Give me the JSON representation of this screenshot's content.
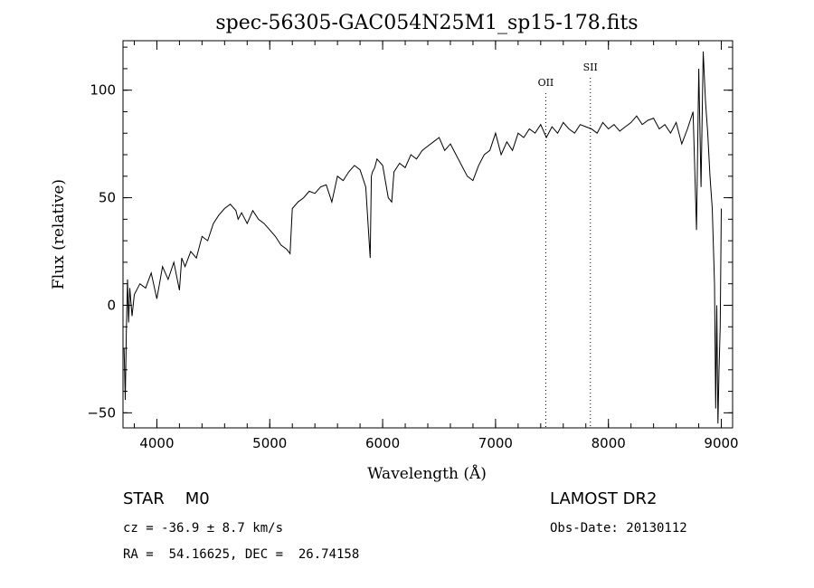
{
  "chart_data": {
    "type": "line",
    "title": "spec-56305-GAC054N25M1_sp15-178.fits",
    "xlabel": "Wavelength (Å)",
    "ylabel": "Flux (relative)",
    "xlim": [
      3700,
      9100
    ],
    "ylim": [
      -57,
      123
    ],
    "xticks": [
      4000,
      5000,
      6000,
      7000,
      8000,
      9000
    ],
    "yticks": [
      -50,
      0,
      50,
      100
    ],
    "x_minor_step": 200,
    "y_minor_step": 10,
    "grid": false,
    "legend": "none",
    "line_color": "#000000",
    "series": [
      {
        "x": [
          3710,
          3720,
          3730,
          3740,
          3750,
          3760,
          3780,
          3800,
          3850,
          3900,
          3950,
          4000,
          4050,
          4100,
          4150,
          4200,
          4220,
          4250,
          4300,
          4350,
          4400,
          4450,
          4500,
          4550,
          4600,
          4650,
          4700,
          4720,
          4750,
          4800,
          4850,
          4900,
          4950,
          5000,
          5050,
          5100,
          5150,
          5180,
          5200,
          5250,
          5300,
          5350,
          5400,
          5450,
          5500,
          5550,
          5600,
          5650,
          5700,
          5750,
          5800,
          5850,
          5880,
          5890,
          5900,
          5910,
          5930,
          5950,
          6000,
          6050,
          6080,
          6100,
          6150,
          6200,
          6250,
          6300,
          6350,
          6400,
          6450,
          6500,
          6550,
          6600,
          6650,
          6700,
          6750,
          6800,
          6850,
          6900,
          6950,
          7000,
          7050,
          7100,
          7150,
          7200,
          7250,
          7300,
          7350,
          7400,
          7450,
          7500,
          7550,
          7600,
          7650,
          7700,
          7750,
          7800,
          7850,
          7900,
          7950,
          8000,
          8050,
          8100,
          8150,
          8200,
          8250,
          8300,
          8350,
          8400,
          8450,
          8500,
          8550,
          8600,
          8650,
          8700,
          8750,
          8780,
          8800,
          8820,
          8840,
          8860,
          8880,
          8900,
          8920,
          8940,
          8950,
          8960,
          8970,
          8980,
          8990,
          9000
        ],
        "values": [
          -20,
          -44,
          -12,
          12,
          -8,
          8,
          -5,
          5,
          10,
          8,
          15,
          3,
          18,
          12,
          20,
          7,
          22,
          18,
          25,
          22,
          32,
          30,
          38,
          42,
          45,
          47,
          44,
          40,
          43,
          38,
          44,
          40,
          38,
          35,
          32,
          28,
          26,
          24,
          45,
          48,
          50,
          53,
          52,
          55,
          56,
          48,
          60,
          58,
          62,
          65,
          63,
          55,
          30,
          22,
          60,
          62,
          64,
          68,
          65,
          50,
          48,
          62,
          66,
          64,
          70,
          68,
          72,
          74,
          76,
          78,
          72,
          75,
          70,
          65,
          60,
          58,
          65,
          70,
          72,
          80,
          70,
          76,
          72,
          80,
          78,
          82,
          80,
          84,
          78,
          83,
          80,
          85,
          82,
          80,
          84,
          83,
          82,
          80,
          85,
          82,
          84,
          81,
          83,
          85,
          88,
          84,
          86,
          87,
          82,
          84,
          80,
          85,
          75,
          82,
          90,
          35,
          110,
          55,
          118,
          95,
          80,
          60,
          45,
          10,
          -48,
          0,
          -55,
          -30,
          -10,
          45
        ]
      }
    ],
    "line_markers": [
      {
        "x": 7445,
        "label": "OII"
      },
      {
        "x": 7840,
        "label": "SII"
      }
    ]
  },
  "info": {
    "class_line": "STAR    M0",
    "cz_line": "cz = -36.9 ± 8.7 km/s",
    "radec_line": "RA =  54.16625, DEC =  26.74158",
    "survey": "LAMOST DR2",
    "obs_date": "Obs-Date: 20130112"
  }
}
